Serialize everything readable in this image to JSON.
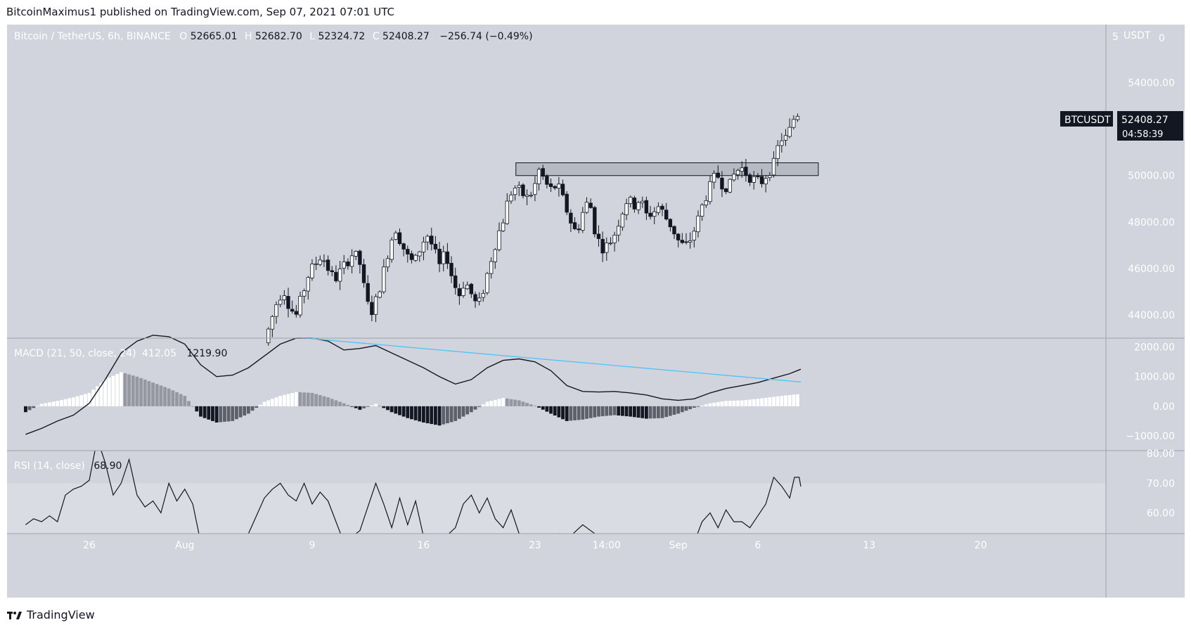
{
  "header": {
    "publication": "BitcoinMaximus1 published on TradingView.com, Sep 07, 2021 07:01 UTC"
  },
  "footer": {
    "brand": "TradingView"
  },
  "colors": {
    "background": "#d1d4dc",
    "rsi_band": "#dadce3",
    "up_candle": "#ffffff",
    "down_candle": "#131722",
    "macd_line": "#131722",
    "trendline": "#4fc3f7",
    "hist_dark": "#131722",
    "hist_mid": "#5d606b",
    "hist_light": "#ffffff",
    "hist_grey": "#9598a1",
    "price_tag": "#131722"
  },
  "legend": {
    "symbol": "Bitcoin / TetherUS, 6h, BINANCE",
    "open": "52665.01",
    "high": "52682.70",
    "low": "52324.72",
    "close": "52408.27",
    "change": "−256.74 (−0.49%)"
  },
  "currency": "USDT",
  "price_axis": {
    "top_labels": [
      "5",
      "0"
    ]
  },
  "price_tag": {
    "symbol": "BTCUSDT",
    "price": "52408.27",
    "countdown": "04:58:39"
  },
  "macd_legend": {
    "label": "MACD (21, 50, close, 24)",
    "value1": "412.05",
    "value2": "1219.90"
  },
  "rsi_legend": {
    "label": "RSI (14, close)",
    "value": "68.90"
  },
  "chart_data": [
    {
      "type": "candlestick",
      "title": "Bitcoin / TetherUS, 6h, BINANCE",
      "y_ticks": [
        "54000.00",
        "50000.00",
        "48000.00",
        "46000.00",
        "44000.00"
      ],
      "ylim": [
        43000,
        56500
      ],
      "x_ticks": [
        {
          "label": "26",
          "day": 26
        },
        {
          "label": "Aug",
          "day": 32
        },
        {
          "label": "9",
          "day": 40
        },
        {
          "label": "16",
          "day": 47
        },
        {
          "label": "23",
          "day": 54
        },
        {
          "label": "14:00",
          "day": 58.5
        },
        {
          "label": "Sep",
          "day": 63
        },
        {
          "label": "6",
          "day": 68
        },
        {
          "label": "13",
          "day": 75
        },
        {
          "label": "20",
          "day": 82
        }
      ],
      "resistance_zone": {
        "x_start": 52.8,
        "x_end": 71.8,
        "y_low": 50000,
        "y_high": 50550
      },
      "waypoints": [
        [
          37.0,
          42800
        ],
        [
          37.4,
          43700
        ],
        [
          37.8,
          44600
        ],
        [
          38.2,
          45100
        ],
        [
          38.6,
          44300
        ],
        [
          39.0,
          44000
        ],
        [
          39.4,
          44900
        ],
        [
          39.8,
          45800
        ],
        [
          40.2,
          46200
        ],
        [
          40.6,
          46600
        ],
        [
          41.0,
          46000
        ],
        [
          41.4,
          45500
        ],
        [
          41.8,
          45900
        ],
        [
          42.2,
          46300
        ],
        [
          42.6,
          46700
        ],
        [
          43.0,
          46200
        ],
        [
          43.4,
          44600
        ],
        [
          43.7,
          44100
        ],
        [
          44.0,
          44600
        ],
        [
          44.4,
          45600
        ],
        [
          44.8,
          46800
        ],
        [
          45.2,
          47800
        ],
        [
          45.6,
          47100
        ],
        [
          46.0,
          46500
        ],
        [
          46.4,
          46200
        ],
        [
          46.8,
          46900
        ],
        [
          47.2,
          47500
        ],
        [
          47.6,
          46900
        ],
        [
          48.0,
          46100
        ],
        [
          48.4,
          46700
        ],
        [
          48.8,
          45600
        ],
        [
          49.2,
          44800
        ],
        [
          49.6,
          45500
        ],
        [
          50.0,
          44900
        ],
        [
          50.4,
          44300
        ],
        [
          50.8,
          45200
        ],
        [
          51.2,
          46300
        ],
        [
          51.6,
          47300
        ],
        [
          52.0,
          48100
        ],
        [
          52.4,
          49200
        ],
        [
          52.8,
          49500
        ],
        [
          53.2,
          49200
        ],
        [
          53.6,
          49000
        ],
        [
          54.0,
          49600
        ],
        [
          54.3,
          50350
        ],
        [
          54.6,
          49700
        ],
        [
          55.0,
          49400
        ],
        [
          55.4,
          49600
        ],
        [
          55.8,
          48900
        ],
        [
          56.2,
          48100
        ],
        [
          56.6,
          47500
        ],
        [
          57.0,
          48400
        ],
        [
          57.4,
          49000
        ],
        [
          57.8,
          47500
        ],
        [
          58.2,
          46900
        ],
        [
          58.6,
          47000
        ],
        [
          59.0,
          47500
        ],
        [
          59.4,
          48300
        ],
        [
          59.8,
          49000
        ],
        [
          60.2,
          48700
        ],
        [
          60.6,
          49000
        ],
        [
          61.0,
          48300
        ],
        [
          61.4,
          48400
        ],
        [
          61.8,
          48700
        ],
        [
          62.2,
          48200
        ],
        [
          62.6,
          47800
        ],
        [
          63.0,
          47200
        ],
        [
          63.4,
          46900
        ],
        [
          63.8,
          47300
        ],
        [
          64.2,
          48000
        ],
        [
          64.6,
          48900
        ],
        [
          65.0,
          49500
        ],
        [
          65.4,
          50100
        ],
        [
          65.8,
          49600
        ],
        [
          66.2,
          49500
        ],
        [
          66.6,
          50200
        ],
        [
          67.0,
          50300
        ],
        [
          67.4,
          50000
        ],
        [
          67.8,
          49800
        ],
        [
          68.2,
          49700
        ],
        [
          68.6,
          50100
        ],
        [
          69.0,
          50500
        ],
        [
          69.4,
          51600
        ],
        [
          69.8,
          51600
        ],
        [
          70.1,
          52100
        ],
        [
          70.4,
          52800
        ],
        [
          70.7,
          52408
        ]
      ]
    },
    {
      "type": "line",
      "title": "MACD (21, 50, close, 24)",
      "y_ticks": [
        "2000.00",
        "1000.00",
        "0.00",
        "−1000.00"
      ],
      "ylim": [
        -1500,
        2300
      ],
      "macd_line": [
        [
          22.0,
          -950
        ],
        [
          23.0,
          -750
        ],
        [
          24.0,
          -500
        ],
        [
          25.0,
          -300
        ],
        [
          26.0,
          100
        ],
        [
          27.0,
          900
        ],
        [
          28.0,
          1800
        ],
        [
          29.0,
          2200
        ],
        [
          30.0,
          2400
        ],
        [
          31.0,
          2350
        ],
        [
          32.0,
          2100
        ],
        [
          33.0,
          1400
        ],
        [
          34.0,
          1000
        ],
        [
          35.0,
          1050
        ],
        [
          36.0,
          1300
        ],
        [
          37.0,
          1700
        ],
        [
          38.0,
          2100
        ],
        [
          39.0,
          2300
        ],
        [
          40.0,
          2300
        ],
        [
          41.0,
          2200
        ],
        [
          42.0,
          1900
        ],
        [
          43.0,
          1950
        ],
        [
          44.0,
          2050
        ],
        [
          45.0,
          1800
        ],
        [
          46.0,
          1550
        ],
        [
          47.0,
          1300
        ],
        [
          48.0,
          1000
        ],
        [
          49.0,
          750
        ],
        [
          50.0,
          900
        ],
        [
          51.0,
          1300
        ],
        [
          52.0,
          1550
        ],
        [
          53.0,
          1600
        ],
        [
          54.0,
          1500
        ],
        [
          55.0,
          1200
        ],
        [
          56.0,
          700
        ],
        [
          57.0,
          500
        ],
        [
          58.0,
          480
        ],
        [
          59.0,
          500
        ],
        [
          60.0,
          450
        ],
        [
          61.0,
          380
        ],
        [
          62.0,
          250
        ],
        [
          63.0,
          200
        ],
        [
          64.0,
          250
        ],
        [
          65.0,
          450
        ],
        [
          66.0,
          600
        ],
        [
          67.0,
          700
        ],
        [
          68.0,
          800
        ],
        [
          69.0,
          950
        ],
        [
          70.0,
          1100
        ],
        [
          70.7,
          1250
        ]
      ],
      "histogram": [
        [
          22.0,
          -200
        ],
        [
          23.0,
          80
        ],
        [
          24.0,
          180
        ],
        [
          25.0,
          300
        ],
        [
          26.0,
          450
        ],
        [
          27.0,
          900
        ],
        [
          28.0,
          1150
        ],
        [
          29.0,
          1000
        ],
        [
          30.0,
          800
        ],
        [
          31.0,
          600
        ],
        [
          32.0,
          350
        ],
        [
          33.0,
          -350
        ],
        [
          34.0,
          -550
        ],
        [
          35.0,
          -500
        ],
        [
          36.0,
          -250
        ],
        [
          37.0,
          150
        ],
        [
          38.0,
          350
        ],
        [
          39.0,
          480
        ],
        [
          40.0,
          450
        ],
        [
          41.0,
          300
        ],
        [
          42.0,
          100
        ],
        [
          43.0,
          -120
        ],
        [
          44.0,
          80
        ],
        [
          45.0,
          -200
        ],
        [
          46.0,
          -400
        ],
        [
          47.0,
          -550
        ],
        [
          48.0,
          -650
        ],
        [
          49.0,
          -500
        ],
        [
          50.0,
          -200
        ],
        [
          51.0,
          150
        ],
        [
          52.0,
          280
        ],
        [
          53.0,
          200
        ],
        [
          54.0,
          20
        ],
        [
          55.0,
          -250
        ],
        [
          56.0,
          -500
        ],
        [
          57.0,
          -450
        ],
        [
          58.0,
          -350
        ],
        [
          59.0,
          -300
        ],
        [
          60.0,
          -350
        ],
        [
          61.0,
          -420
        ],
        [
          62.0,
          -400
        ],
        [
          63.0,
          -250
        ],
        [
          64.0,
          -50
        ],
        [
          65.0,
          100
        ],
        [
          66.0,
          180
        ],
        [
          67.0,
          200
        ],
        [
          68.0,
          250
        ],
        [
          69.0,
          320
        ],
        [
          70.0,
          380
        ],
        [
          70.7,
          412
        ]
      ],
      "trendline": [
        [
          39.4,
          2310
        ],
        [
          70.7,
          820
        ]
      ]
    },
    {
      "type": "line",
      "title": "RSI (14, close)",
      "y_ticks": [
        "80.00",
        "70.00",
        "60.00"
      ],
      "ylim": [
        53,
        81
      ],
      "band": [
        50,
        70
      ],
      "rsi_line": [
        [
          22.0,
          56
        ],
        [
          22.5,
          58
        ],
        [
          23.0,
          57
        ],
        [
          23.5,
          59
        ],
        [
          24.0,
          57
        ],
        [
          24.5,
          66
        ],
        [
          25.0,
          68
        ],
        [
          25.5,
          69
        ],
        [
          26.0,
          71
        ],
        [
          26.5,
          85
        ],
        [
          27.0,
          77
        ],
        [
          27.5,
          66
        ],
        [
          28.0,
          70
        ],
        [
          28.5,
          78
        ],
        [
          29.0,
          66
        ],
        [
          29.5,
          62
        ],
        [
          30.0,
          64
        ],
        [
          30.5,
          60
        ],
        [
          31.0,
          70
        ],
        [
          31.5,
          64
        ],
        [
          32.0,
          68
        ],
        [
          32.5,
          63
        ],
        [
          33.0,
          50
        ],
        [
          36.0,
          53
        ],
        [
          36.5,
          59
        ],
        [
          37.0,
          65
        ],
        [
          37.5,
          68
        ],
        [
          38.0,
          70
        ],
        [
          38.5,
          66
        ],
        [
          39.0,
          64
        ],
        [
          39.5,
          70
        ],
        [
          40.0,
          63
        ],
        [
          40.5,
          67
        ],
        [
          41.0,
          64
        ],
        [
          41.5,
          57
        ],
        [
          42.0,
          50
        ],
        [
          43.0,
          54
        ],
        [
          43.5,
          62
        ],
        [
          44.0,
          70
        ],
        [
          44.5,
          63
        ],
        [
          45.0,
          55
        ],
        [
          45.5,
          65
        ],
        [
          46.0,
          56
        ],
        [
          46.5,
          64
        ],
        [
          47.0,
          52
        ],
        [
          48.0,
          50
        ],
        [
          49.0,
          55
        ],
        [
          49.5,
          63
        ],
        [
          50.0,
          66
        ],
        [
          50.5,
          60
        ],
        [
          51.0,
          65
        ],
        [
          51.5,
          58
        ],
        [
          52.0,
          55
        ],
        [
          52.5,
          61
        ],
        [
          53.0,
          53
        ],
        [
          54.5,
          50
        ],
        [
          55.5,
          53
        ],
        [
          56.0,
          51
        ],
        [
          57.0,
          56
        ],
        [
          57.5,
          54
        ],
        [
          58.0,
          52
        ],
        [
          58.5,
          50
        ],
        [
          60.0,
          50
        ],
        [
          61.0,
          52
        ],
        [
          62.0,
          50
        ],
        [
          64.0,
          50
        ],
        [
          64.5,
          57
        ],
        [
          65.0,
          60
        ],
        [
          65.5,
          55
        ],
        [
          66.0,
          61
        ],
        [
          66.5,
          57
        ],
        [
          67.0,
          57
        ],
        [
          67.5,
          55
        ],
        [
          68.0,
          59
        ],
        [
          68.5,
          63
        ],
        [
          69.0,
          72
        ],
        [
          69.5,
          69
        ],
        [
          70.0,
          65
        ],
        [
          70.3,
          72
        ],
        [
          70.6,
          72
        ],
        [
          70.7,
          68.9
        ]
      ]
    }
  ]
}
